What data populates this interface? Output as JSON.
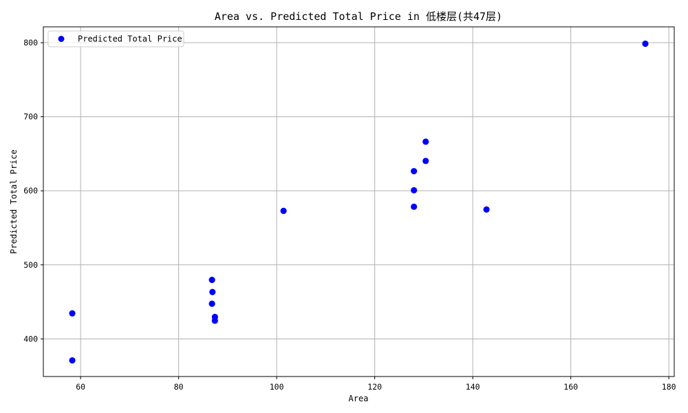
{
  "chart_data": {
    "type": "scatter",
    "title": "Area vs. Predicted Total Price in 低楼层(共47层)",
    "xlabel": "Area",
    "ylabel": "Predicted Total Price",
    "xlim": [
      52.4,
      181.1
    ],
    "ylim": [
      349.2,
      821.4
    ],
    "xticks": [
      60,
      80,
      100,
      120,
      140,
      160,
      180
    ],
    "yticks": [
      400,
      500,
      600,
      700,
      800
    ],
    "grid": true,
    "legend_position": "top-left",
    "series": [
      {
        "name": "Predicted Total Price",
        "color": "#0000ff",
        "marker": "circle",
        "points": [
          {
            "x": 58.3,
            "y": 434.5
          },
          {
            "x": 58.3,
            "y": 371.0
          },
          {
            "x": 86.8,
            "y": 479.7
          },
          {
            "x": 86.9,
            "y": 463.3
          },
          {
            "x": 86.8,
            "y": 447.5
          },
          {
            "x": 87.4,
            "y": 429.6
          },
          {
            "x": 87.4,
            "y": 424.6
          },
          {
            "x": 101.4,
            "y": 572.9
          },
          {
            "x": 128.0,
            "y": 626.5
          },
          {
            "x": 128.0,
            "y": 600.7
          },
          {
            "x": 128.0,
            "y": 578.5
          },
          {
            "x": 130.4,
            "y": 666.3
          },
          {
            "x": 130.4,
            "y": 640.3
          },
          {
            "x": 142.8,
            "y": 574.7
          },
          {
            "x": 175.2,
            "y": 798.6
          }
        ]
      }
    ]
  }
}
